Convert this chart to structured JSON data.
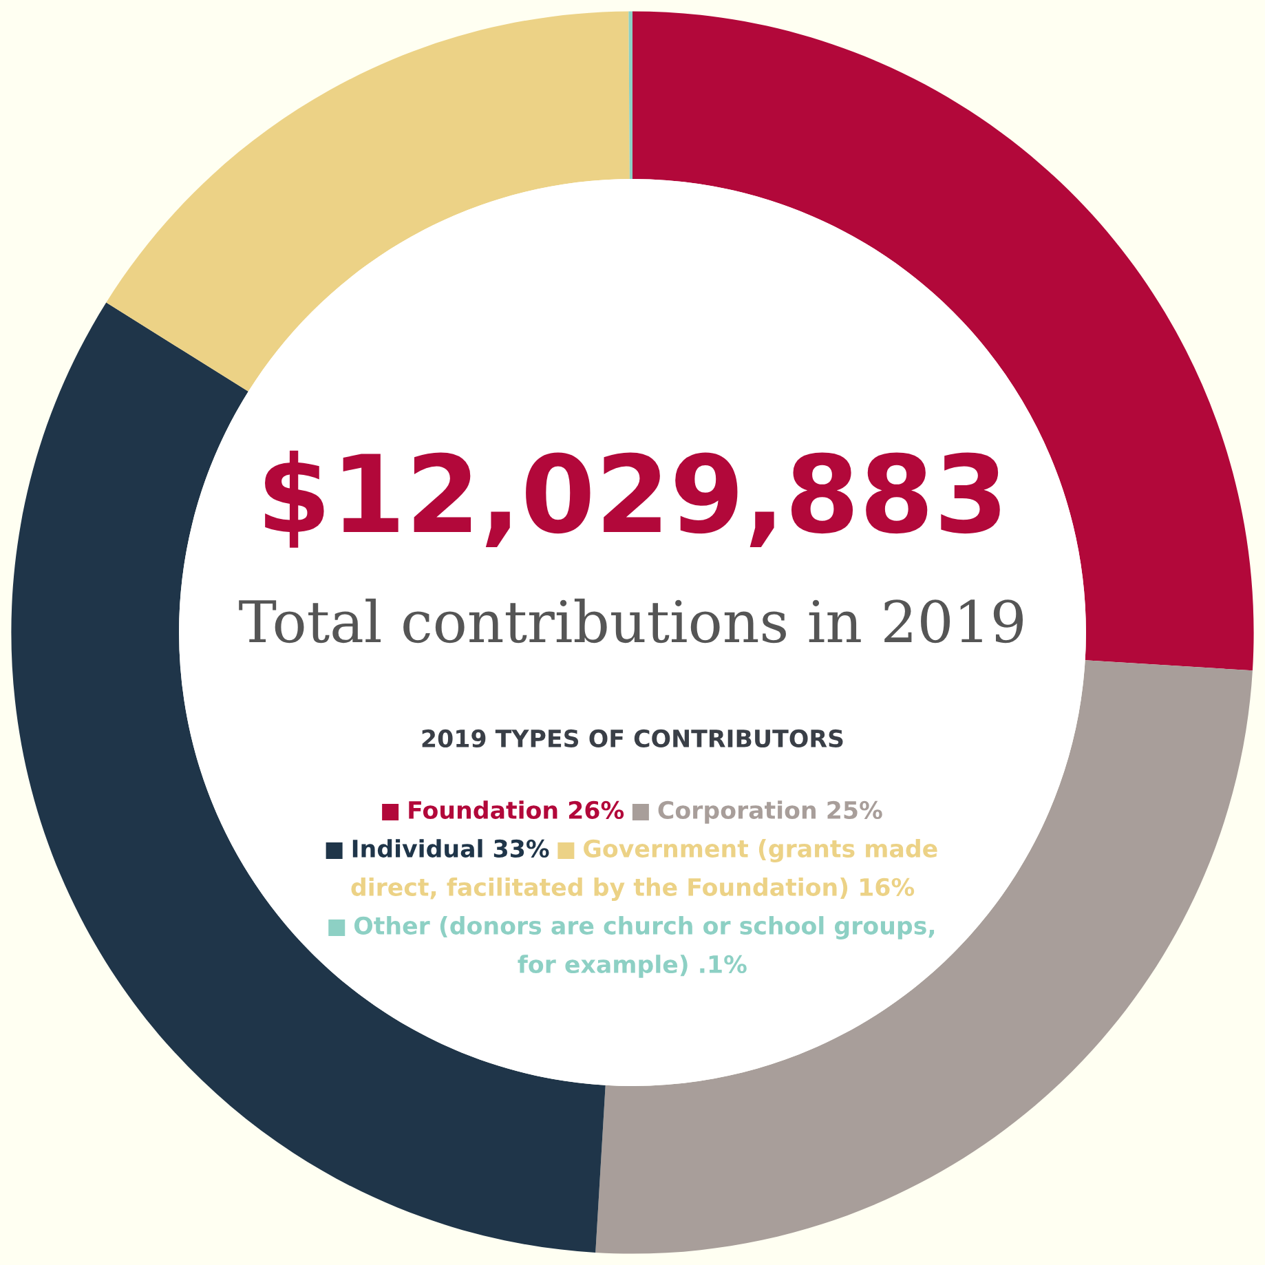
{
  "chart_data": {
    "type": "donut",
    "title": "$12,029,883",
    "subtitle": "Total contributions in 2019",
    "legend_title": "2019 TYPES OF CONTRIBUTORS",
    "categories": [
      "Foundation",
      "Corporation",
      "Individual",
      "Government (grants made direct, facilitated by the Foundation)",
      "Other (donors are church or school groups, for example)"
    ],
    "values": [
      26,
      25,
      33,
      16,
      0.1
    ],
    "value_labels": [
      "26%",
      "25%",
      "33%",
      "16%",
      ".1%"
    ],
    "colors": [
      "#b2083a",
      "#a89e9a",
      "#1f3549",
      "#ecd286",
      "#8dd0c4"
    ],
    "legend": "center"
  }
}
